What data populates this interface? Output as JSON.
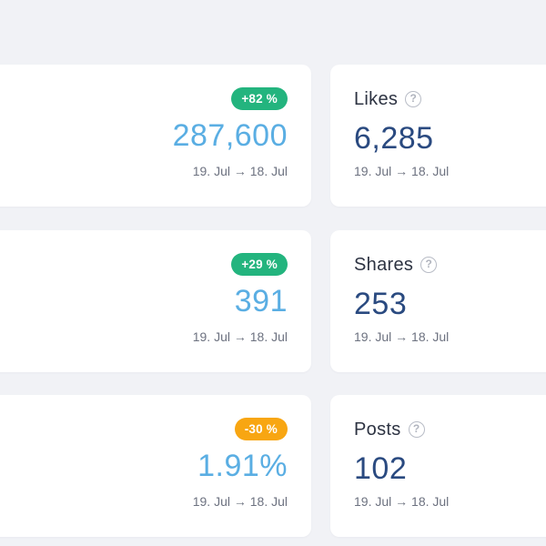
{
  "left_cards": [
    {
      "badge": "+82 %",
      "badge_tone": "up",
      "value": "287,600",
      "date_range": "19. Jul → 18. Jul"
    },
    {
      "badge": "+29 %",
      "badge_tone": "up",
      "value": "391",
      "date_range": "19. Jul → 18. Jul"
    },
    {
      "badge": "-30 %",
      "badge_tone": "down",
      "value": "1.91%",
      "date_range": "19. Jul → 18. Jul"
    }
  ],
  "right_cards": [
    {
      "title": "Likes",
      "help_icon": "question-circle-icon",
      "value": "6,285",
      "date_range": "19. Jul → 18. Jul"
    },
    {
      "title": "Shares",
      "help_icon": "question-circle-icon",
      "value": "253",
      "date_range": "19. Jul → 18. Jul"
    },
    {
      "title": "Posts",
      "help_icon": "question-circle-icon",
      "value": "102",
      "date_range": "19. Jul → 18. Jul"
    }
  ],
  "help_glyph": "?",
  "colors": {
    "background": "#f1f2f6",
    "card": "#ffffff",
    "badge_up": "#23b47e",
    "badge_down": "#f8a612",
    "value_light_blue": "#5aaee3",
    "value_dark_blue": "#2a4a80",
    "muted_text": "#6d7280"
  }
}
